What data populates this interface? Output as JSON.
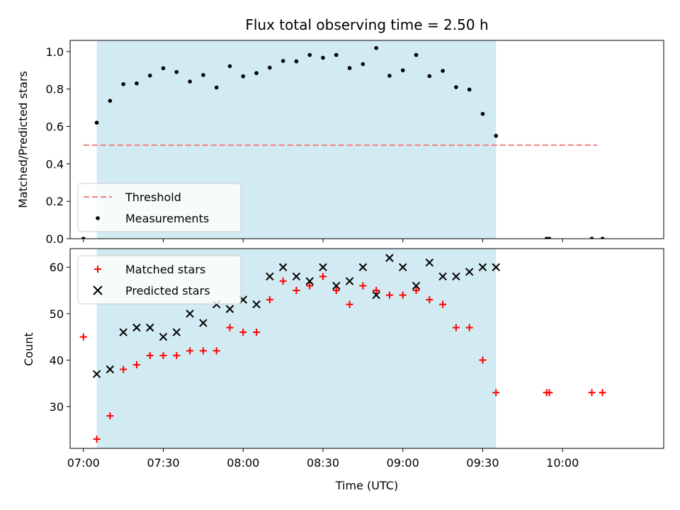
{
  "chart_data": [
    {
      "type": "scatter",
      "title": "Flux total observing time = 2.50 h",
      "xlabel": "",
      "ylabel": "Matched/Predicted stars",
      "ylim": [
        0,
        1.06
      ],
      "xlim": [
        "06:55",
        "10:38"
      ],
      "yticks": [
        "0.0",
        "0.2",
        "0.4",
        "0.6",
        "0.8",
        "1.0"
      ],
      "shaded_interval": [
        "07:05",
        "09:35"
      ],
      "shade_color": "#add8e6",
      "legend_position": "lower-left",
      "threshold": {
        "name": "Threshold",
        "y": 0.5,
        "x_start": "07:00",
        "x_end": "10:13",
        "color": "#f08080",
        "style": "dashed"
      },
      "series": [
        {
          "name": "Measurements",
          "color": "#000000",
          "marker": "dot",
          "points": [
            [
              "07:00",
              0.0
            ],
            [
              "07:05",
              0.62
            ],
            [
              "07:10",
              0.737
            ],
            [
              "07:15",
              0.826
            ],
            [
              "07:20",
              0.83
            ],
            [
              "07:25",
              0.872
            ],
            [
              "07:30",
              0.911
            ],
            [
              "07:35",
              0.891
            ],
            [
              "07:40",
              0.84
            ],
            [
              "07:45",
              0.875
            ],
            [
              "07:50",
              0.808
            ],
            [
              "07:55",
              0.922
            ],
            [
              "08:00",
              0.868
            ],
            [
              "08:05",
              0.885
            ],
            [
              "08:10",
              0.914
            ],
            [
              "08:15",
              0.95
            ],
            [
              "08:20",
              0.948
            ],
            [
              "08:25",
              0.982
            ],
            [
              "08:30",
              0.967
            ],
            [
              "08:35",
              0.982
            ],
            [
              "08:40",
              0.912
            ],
            [
              "08:45",
              0.933
            ],
            [
              "08:50",
              1.019
            ],
            [
              "08:55",
              0.871
            ],
            [
              "09:00",
              0.9
            ],
            [
              "09:05",
              0.982
            ],
            [
              "09:10",
              0.869
            ],
            [
              "09:15",
              0.897
            ],
            [
              "09:20",
              0.81
            ],
            [
              "09:25",
              0.797
            ],
            [
              "09:30",
              0.667
            ],
            [
              "09:35",
              0.55
            ],
            [
              "09:54",
              0.0
            ],
            [
              "09:55",
              0.0
            ],
            [
              "10:11",
              0.0
            ],
            [
              "10:15",
              0.0
            ]
          ]
        }
      ]
    },
    {
      "type": "scatter",
      "title": "",
      "xlabel": "Time (UTC)",
      "ylabel": "Count",
      "ylim": [
        21,
        64
      ],
      "xlim": [
        "06:55",
        "10:38"
      ],
      "xticks": [
        "07:00",
        "07:30",
        "08:00",
        "08:30",
        "09:00",
        "09:30",
        "10:00"
      ],
      "yticks": [
        "30",
        "40",
        "50",
        "60"
      ],
      "shaded_interval": [
        "07:05",
        "09:35"
      ],
      "shade_color": "#add8e6",
      "legend_position": "upper-left",
      "series": [
        {
          "name": "Matched stars",
          "color": "#ff0000",
          "marker": "plus",
          "points": [
            [
              "07:00",
              45
            ],
            [
              "07:05",
              23
            ],
            [
              "07:10",
              28
            ],
            [
              "07:15",
              38
            ],
            [
              "07:20",
              39
            ],
            [
              "07:25",
              41
            ],
            [
              "07:30",
              41
            ],
            [
              "07:35",
              41
            ],
            [
              "07:40",
              42
            ],
            [
              "07:45",
              42
            ],
            [
              "07:50",
              42
            ],
            [
              "07:55",
              47
            ],
            [
              "08:00",
              46
            ],
            [
              "08:05",
              46
            ],
            [
              "08:10",
              53
            ],
            [
              "08:15",
              57
            ],
            [
              "08:20",
              55
            ],
            [
              "08:25",
              56
            ],
            [
              "08:30",
              58
            ],
            [
              "08:35",
              55
            ],
            [
              "08:40",
              52
            ],
            [
              "08:45",
              56
            ],
            [
              "08:50",
              55
            ],
            [
              "08:55",
              54
            ],
            [
              "09:00",
              54
            ],
            [
              "09:05",
              55
            ],
            [
              "09:10",
              53
            ],
            [
              "09:15",
              52
            ],
            [
              "09:20",
              47
            ],
            [
              "09:25",
              47
            ],
            [
              "09:30",
              40
            ],
            [
              "09:35",
              33
            ],
            [
              "09:54",
              33
            ],
            [
              "09:55",
              33
            ],
            [
              "10:11",
              33
            ],
            [
              "10:15",
              33
            ]
          ]
        },
        {
          "name": "Predicted stars",
          "color": "#000000",
          "marker": "x",
          "points": [
            [
              "07:05",
              37
            ],
            [
              "07:10",
              38
            ],
            [
              "07:15",
              46
            ],
            [
              "07:20",
              47
            ],
            [
              "07:25",
              47
            ],
            [
              "07:30",
              45
            ],
            [
              "07:35",
              46
            ],
            [
              "07:40",
              50
            ],
            [
              "07:45",
              48
            ],
            [
              "07:50",
              52
            ],
            [
              "07:55",
              51
            ],
            [
              "08:00",
              53
            ],
            [
              "08:05",
              52
            ],
            [
              "08:10",
              58
            ],
            [
              "08:15",
              60
            ],
            [
              "08:20",
              58
            ],
            [
              "08:25",
              57
            ],
            [
              "08:30",
              60
            ],
            [
              "08:35",
              56
            ],
            [
              "08:40",
              57
            ],
            [
              "08:45",
              60
            ],
            [
              "08:50",
              54
            ],
            [
              "08:55",
              62
            ],
            [
              "09:00",
              60
            ],
            [
              "09:05",
              56
            ],
            [
              "09:10",
              61
            ],
            [
              "09:15",
              58
            ],
            [
              "09:20",
              58
            ],
            [
              "09:25",
              59
            ],
            [
              "09:30",
              60
            ],
            [
              "09:35",
              60
            ]
          ]
        }
      ]
    }
  ]
}
